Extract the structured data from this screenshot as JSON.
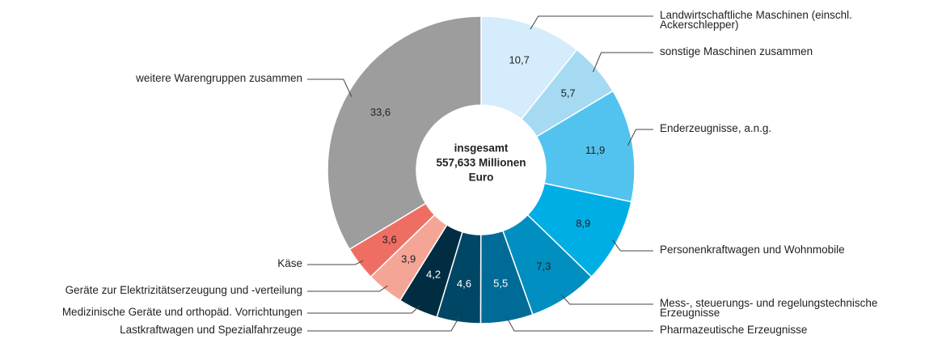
{
  "chart_data": {
    "type": "donut",
    "center_label": [
      "insgesamt",
      "557,633 Millionen",
      "Euro"
    ],
    "categories": [
      "Landwirtschaftliche Maschinen (einschl. Ackerschlepper)",
      "sonstige Maschinen zusammen",
      "Enderzeugnisse, a.n.g.",
      "Personenkraftwagen und Wohnmobile",
      "Mess-, steuerungs- und regelungstechnische Erzeugnisse",
      "Pharmazeutische Erzeugnisse",
      "Lastkraftwagen und Spezialfahrzeuge",
      "Medizinische Geräte und orthopäd. Vorrichtungen",
      "Geräte zur Elektrizitätserzeugung und -verteilung",
      "Käse",
      "weitere Warengruppen zusammen"
    ],
    "values": [
      10.7,
      5.7,
      11.9,
      8.9,
      7.3,
      5.5,
      4.6,
      4.2,
      3.9,
      3.6,
      33.6
    ],
    "value_labels": [
      "10,7",
      "5,7",
      "11,9",
      "8,9",
      "7,3",
      "5,5",
      "4,6",
      "4,2",
      "3,9",
      "3,6",
      "33,6"
    ],
    "colors": [
      "#d4ecfb",
      "#a5daf2",
      "#52c3ee",
      "#00aee6",
      "#008fc0",
      "#006b96",
      "#004766",
      "#002d42",
      "#f5a596",
      "#ef6e63",
      "#9d9d9d"
    ]
  }
}
